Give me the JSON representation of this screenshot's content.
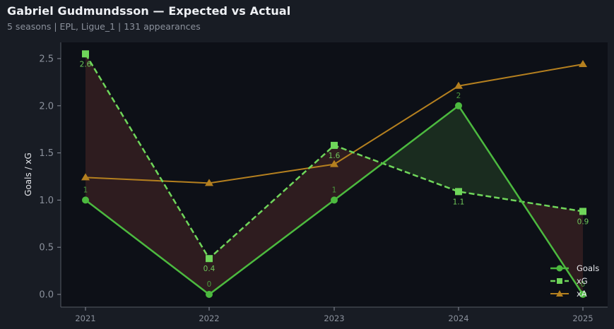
{
  "header": {
    "title": "Gabriel Gudmundsson — Expected vs Actual",
    "subtitle": "5 seasons | EPL, Ligue_1 | 131 appearances"
  },
  "colors": {
    "background": "#181c24",
    "plot_background": "#0d1017",
    "goals": "#4cba3f",
    "xg": "#6fd65a",
    "xa": "#b5801f",
    "underperf_fill": "#2e1c1f",
    "overperf_fill": "#1a2c1f",
    "tick_text": "#8b919c",
    "axis": "#555a63"
  },
  "chart_data": {
    "type": "line",
    "title": "Gabriel Gudmundsson — Expected vs Actual",
    "subtitle": "5 seasons | EPL, Ligue_1 | 131 appearances",
    "xlabel": "",
    "ylabel": "Goals / xG",
    "categories": [
      "2021",
      "2022",
      "2023",
      "2024",
      "2025"
    ],
    "ylim": [
      -0.12,
      2.65
    ],
    "yticks": [
      "0.0",
      "0.5",
      "1.0",
      "1.5",
      "2.0",
      "2.5"
    ],
    "grid": false,
    "legend_position": "lower right",
    "series": [
      {
        "name": "Goals",
        "marker": "circle",
        "linestyle": "solid",
        "values": [
          1,
          0,
          1,
          2,
          0
        ],
        "labels": [
          "1",
          "0",
          "1",
          "2",
          "0"
        ]
      },
      {
        "name": "xG",
        "marker": "square",
        "linestyle": "dashed",
        "values": [
          2.55,
          0.38,
          1.58,
          1.09,
          0.88
        ],
        "labels": [
          "2.6",
          "0.4",
          "1.6",
          "1.1",
          "0.9"
        ]
      },
      {
        "name": "xA",
        "marker": "triangle",
        "linestyle": "solid",
        "values": [
          1.24,
          1.18,
          1.38,
          2.21,
          2.44
        ]
      }
    ],
    "annotations": "Shaded region between Goals and xG: red where xG > Goals (underperformance), green where Goals > xG (overperformance)"
  },
  "legend": {
    "items": [
      {
        "label": "Goals"
      },
      {
        "label": "xG"
      },
      {
        "label": "xA"
      }
    ]
  }
}
